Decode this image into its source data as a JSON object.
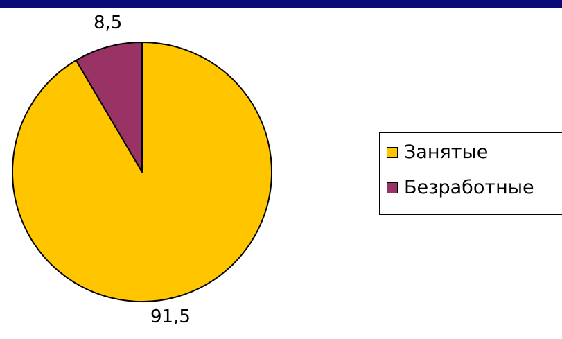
{
  "chart_data": {
    "type": "pie",
    "slices": [
      {
        "name": "Занятые",
        "value": 91.5,
        "label": "91,5",
        "color": "#ffc600"
      },
      {
        "name": "Безработные",
        "value": 8.5,
        "label": "8,5",
        "color": "#993366"
      }
    ],
    "start_angle": "top",
    "direction": "clockwise",
    "legend_position": "right"
  },
  "colors": {
    "header_band": "#0a0a78",
    "outline": "#000000"
  }
}
